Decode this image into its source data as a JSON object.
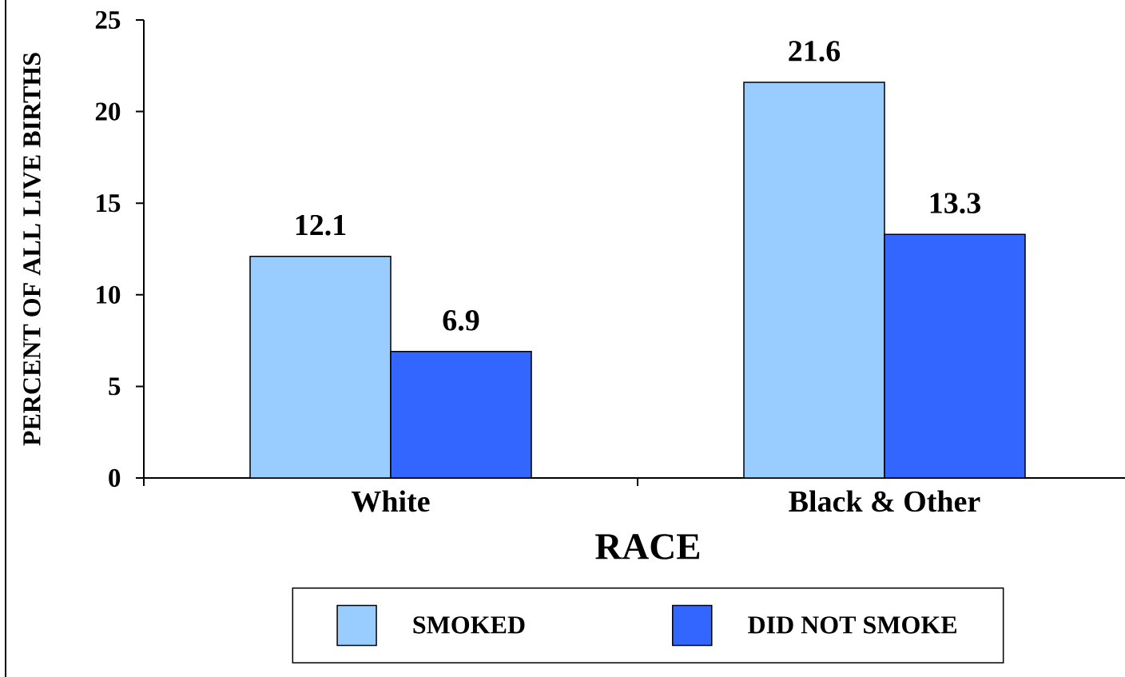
{
  "chart_data": {
    "type": "bar",
    "xlabel": "RACE",
    "ylabel": "PERCENT OF ALL LIVE BIRTHS",
    "categories": [
      "White",
      "Black & Other"
    ],
    "series": [
      {
        "name": "SMOKED",
        "color": "#99ccff",
        "values": [
          12.1,
          21.6
        ]
      },
      {
        "name": "DID NOT SMOKE",
        "color": "#3366ff",
        "values": [
          6.9,
          13.3
        ]
      }
    ],
    "ylim": [
      0,
      25
    ],
    "yticks": [
      0,
      5,
      10,
      15,
      20,
      25
    ],
    "data_labels": true,
    "legend": "bottom"
  }
}
